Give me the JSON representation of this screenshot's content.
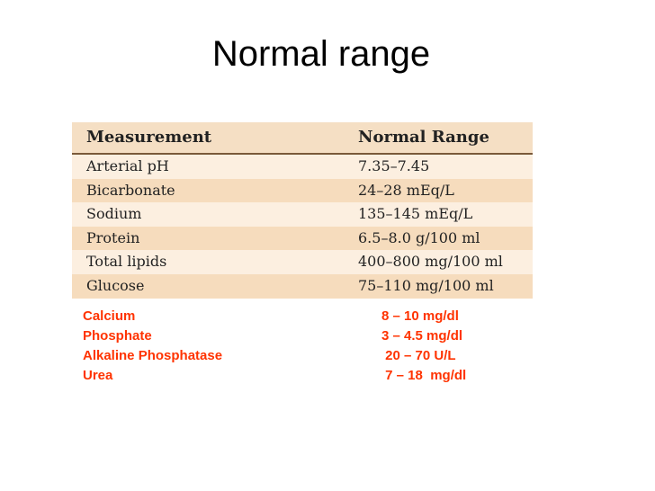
{
  "slide": {
    "title": "Normal range"
  },
  "table": {
    "headers": [
      "Measurement",
      "Normal Range"
    ],
    "rows": [
      {
        "measurement": "Arterial pH",
        "range": "7.35–7.45"
      },
      {
        "measurement": "Bicarbonate",
        "range": "24–28 mEq/L"
      },
      {
        "measurement": "Sodium",
        "range": "135–145 mEq/L"
      },
      {
        "measurement": "Protein",
        "range": "6.5–8.0 g/100 ml"
      },
      {
        "measurement": "Total lipids",
        "range": "400–800 mg/100 ml"
      },
      {
        "measurement": "Glucose",
        "range": "75–110 mg/100 ml"
      }
    ],
    "colors": {
      "header_bg": "#f5dfc4",
      "row_light": "#fcefe0",
      "row_dark": "#f6dcbd",
      "rule": "#7a5a3a"
    }
  },
  "extra": {
    "color": "#ff3300",
    "rows": [
      {
        "name": "Calcium",
        "value": "8 – 10 mg/dl"
      },
      {
        "name": "Phosphate",
        "value": "3 – 4.5 mg/dl"
      },
      {
        "name": "Alkaline Phosphatase",
        "value": " 20 – 70 U/L"
      },
      {
        "name": "Urea",
        "value": " 7 – 18  mg/dl"
      }
    ]
  }
}
